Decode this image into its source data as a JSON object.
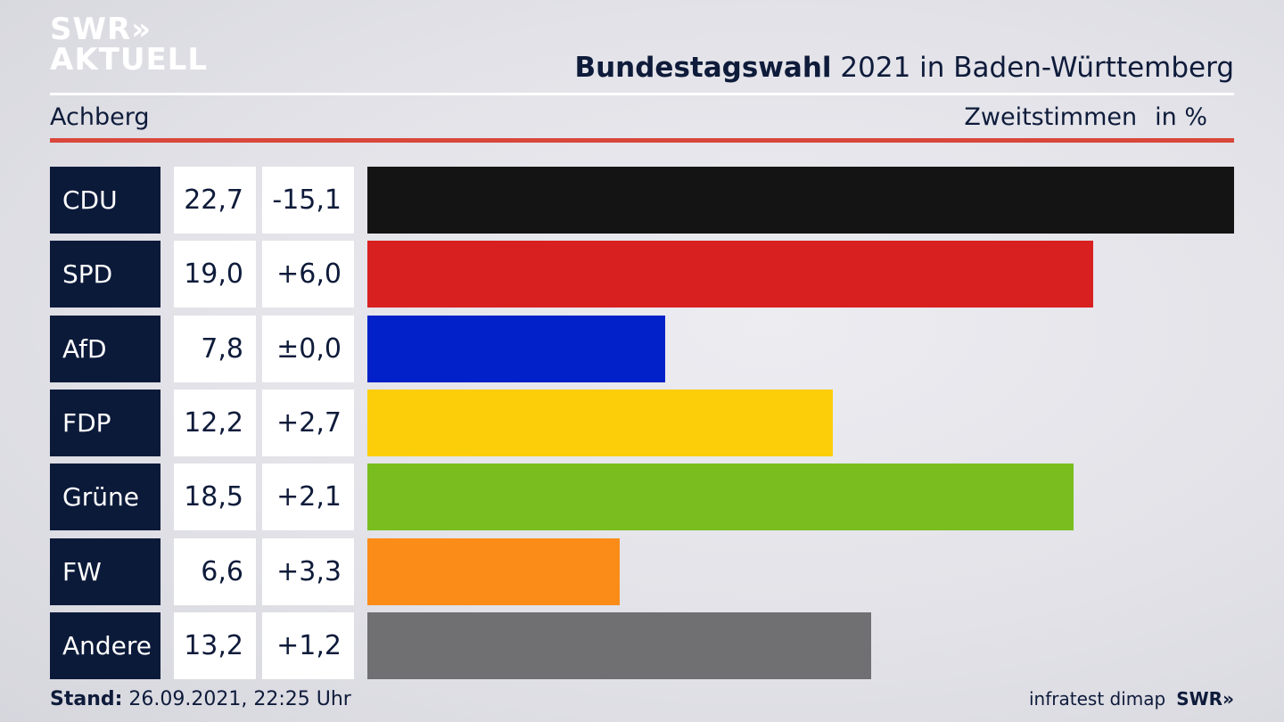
{
  "brand": {
    "line1": "SWR",
    "arrows": "»",
    "line2": "AKTUELL"
  },
  "header": {
    "title_bold": "Bundestagswahl",
    "title_rest": " 2021 in Baden-Württemberg",
    "subtitle": "Achberg",
    "measure": "Zweitstimmen",
    "unit": "in %"
  },
  "chart_data": {
    "type": "bar",
    "orientation": "horizontal",
    "title": "Bundestagswahl 2021 in Baden-Württemberg",
    "subtitle": "Achberg",
    "xlabel": "Zweitstimmen",
    "ylabel": "",
    "unit": "in %",
    "categories": [
      "CDU",
      "SPD",
      "AfD",
      "FDP",
      "Grüne",
      "FW",
      "Andere"
    ],
    "values": [
      22.7,
      19.0,
      7.8,
      12.2,
      18.5,
      6.6,
      13.2
    ],
    "value_labels": [
      "22,7",
      "19,0",
      "7,8",
      "12,2",
      "18,5",
      "6,6",
      "13,2"
    ],
    "change_labels": [
      "-15,1",
      "+6,0",
      "±0,0",
      "+2,7",
      "+2,1",
      "+3,3",
      "+1,2"
    ],
    "colors": [
      "#141414",
      "#d92020",
      "#0321c8",
      "#fcce0a",
      "#79be1e",
      "#fc8c18",
      "#707073"
    ],
    "xlim": [
      0,
      22.7
    ],
    "grid": false
  },
  "footer": {
    "stand_label": "Stand:",
    "stand_value": " 26.09.2021, 22:25 Uhr",
    "source": "infratest dimap",
    "brand": "SWR»"
  }
}
